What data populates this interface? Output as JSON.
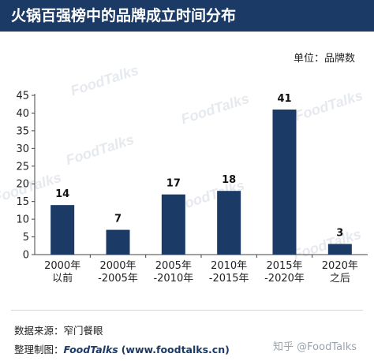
{
  "title": "火锅百强榜中的品牌成立时间分布",
  "unit_label": "单位：品牌数",
  "source_label": "数据来源：窄门餐眼",
  "credit_prefix": "整理制图：",
  "credit_brand": "FoodTalks",
  "credit_site": "(www.foodtalks.cn)",
  "zhihu_mark": "知乎 @FoodTalks",
  "watermark_text": "FoodTalks",
  "colors": {
    "header_bg": "#1c3a66",
    "bar": "#1c3a66",
    "axis": "#444444"
  },
  "chart_data": {
    "type": "bar",
    "categories": [
      [
        "2000年",
        "以前"
      ],
      [
        "2000年",
        "-2005年"
      ],
      [
        "2005年",
        "-2010年"
      ],
      [
        "2010年",
        "-2015年"
      ],
      [
        "2015年",
        "-2020年"
      ],
      [
        "2020年",
        "之后"
      ]
    ],
    "values": [
      14,
      7,
      17,
      18,
      41,
      3
    ],
    "yticks": [
      0,
      5,
      10,
      15,
      20,
      25,
      30,
      35,
      40,
      45
    ],
    "ylim": [
      0,
      45
    ],
    "xlabel": "",
    "ylabel": "",
    "grid": false,
    "data_labels": true
  }
}
